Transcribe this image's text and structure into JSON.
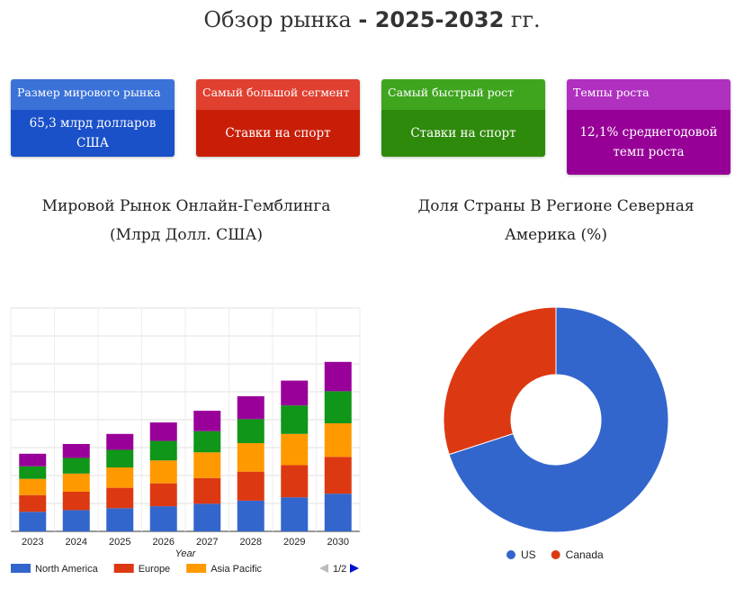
{
  "page": {
    "title_prefix": "Обзор рынка",
    "title_range": "- 2025-2032",
    "title_suffix": "гг."
  },
  "cards": [
    {
      "label": "Размер мирового рынка",
      "value": "65,3 млрд долларов США",
      "head_color": "#3a72d8",
      "body_color": "#1a50c8"
    },
    {
      "label": "Самый большой сегмент",
      "value": "Ставки на спорт",
      "head_color": "#e04030",
      "body_color": "#c81e08"
    },
    {
      "label": "Самый быстрый рост",
      "value": "Ставки на спорт",
      "head_color": "#3fa51f",
      "body_color": "#2e8a0b"
    },
    {
      "label": "Темпы роста",
      "value": "12,1% среднегодовой темп роста",
      "head_color": "#b030c0",
      "body_color": "#960096"
    }
  ],
  "bar_chart": {
    "title": "Мировой Рынок Онлайн-Гемблинга (Млрд Долл. США)"
  },
  "pie_chart": {
    "title": "Доля Страны В Регионе Северная Америка (%)"
  },
  "chart_data": [
    {
      "type": "bar",
      "stacked": true,
      "title": "Мировой Рынок Онлайн-Гемблинга (Млрд Долл. США)",
      "xlabel": "Year",
      "ylabel": "",
      "categories": [
        "2023",
        "2024",
        "2025",
        "2026",
        "2027",
        "2028",
        "2029",
        "2030"
      ],
      "ylim": [
        0,
        80
      ],
      "grid": true,
      "legend_position": "bottom",
      "legend_pager": "1/2",
      "series": [
        {
          "name": "North America",
          "color": "#3366cc",
          "values": [
            7.0,
            7.6,
            8.3,
            9.0,
            9.9,
            11.0,
            12.2,
            13.5
          ]
        },
        {
          "name": "Europe",
          "color": "#dc3912",
          "values": [
            6.0,
            6.6,
            7.3,
            8.2,
            9.2,
            10.4,
            11.5,
            13.2
          ]
        },
        {
          "name": "Asia Pacific",
          "color": "#ff9900",
          "values": [
            5.8,
            6.5,
            7.3,
            8.2,
            9.2,
            10.2,
            11.2,
            12.0
          ]
        },
        {
          "name": "",
          "color": "#109618",
          "values": [
            4.5,
            5.6,
            6.3,
            7.0,
            7.6,
            8.6,
            10.2,
            11.5
          ]
        },
        {
          "name": "",
          "color": "#990099",
          "values": [
            4.5,
            5.0,
            5.7,
            6.6,
            7.3,
            8.2,
            8.9,
            10.5
          ]
        }
      ]
    },
    {
      "type": "pie",
      "donut": true,
      "title": "Доля Страны В Регионе Северная Америка (%)",
      "legend_position": "bottom",
      "labels": [
        "US",
        "Canada"
      ],
      "values": [
        70,
        30
      ],
      "colors": [
        "#3366cc",
        "#dc3912"
      ]
    }
  ]
}
